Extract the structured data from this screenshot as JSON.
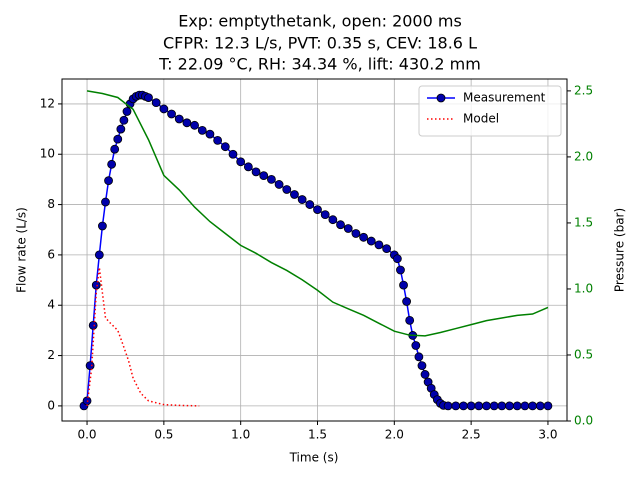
{
  "chart_data": {
    "type": "line",
    "title": [
      "Exp: emptythetank, open: 2000 ms",
      "CFPR: 12.3 L/s, PVT: 0.35 s, CEV: 18.6 L",
      "T: 22.09 °C, RH: 34.34 %, lift: 430.2 mm"
    ],
    "x_label": "Time (s)",
    "y_label": "Flow rate (L/s)",
    "y2_label": "Pressure (bar)",
    "xlim": [
      -0.163,
      3.124
    ],
    "ylim": [
      -0.6,
      12.99
    ],
    "y2lim": [
      0,
      2.59
    ],
    "xticks": [
      {
        "value": 0,
        "label": "0.0"
      },
      0.5,
      {
        "value": 1,
        "label": "1.0"
      },
      1.5,
      {
        "value": 2,
        "label": "2.0"
      },
      2.5,
      {
        "value": 3,
        "label": "3.0"
      }
    ],
    "yticks": [
      0,
      2,
      4,
      6,
      8,
      10,
      12
    ],
    "y2ticks": [
      {
        "value": 0,
        "label": "0.0"
      },
      0.5,
      {
        "value": 1,
        "label": "1.0"
      },
      1.5,
      {
        "value": 2,
        "label": "2.0"
      },
      2.5
    ],
    "y2_color": "#008000",
    "grid": true,
    "legend": "upper right",
    "series": [
      {
        "name": "Measurement",
        "color": "#0000ff",
        "marker": "circle",
        "marker_fill": "#0000aa",
        "x": [
          -0.02,
          0.0,
          0.02,
          0.04,
          0.06,
          0.08,
          0.1,
          0.12,
          0.14,
          0.16,
          0.18,
          0.2,
          0.22,
          0.24,
          0.26,
          0.28,
          0.3,
          0.32,
          0.34,
          0.36,
          0.38,
          0.4,
          0.45,
          0.5,
          0.55,
          0.6,
          0.65,
          0.7,
          0.75,
          0.8,
          0.85,
          0.9,
          0.95,
          1.0,
          1.05,
          1.1,
          1.15,
          1.2,
          1.25,
          1.3,
          1.35,
          1.4,
          1.45,
          1.5,
          1.55,
          1.6,
          1.65,
          1.7,
          1.75,
          1.8,
          1.85,
          1.9,
          1.95,
          2.0,
          2.02,
          2.04,
          2.06,
          2.08,
          2.1,
          2.12,
          2.14,
          2.16,
          2.18,
          2.2,
          2.22,
          2.24,
          2.26,
          2.28,
          2.3,
          2.32,
          2.35,
          2.4,
          2.45,
          2.5,
          2.55,
          2.6,
          2.65,
          2.7,
          2.75,
          2.8,
          2.85,
          2.9,
          2.95,
          3.0
        ],
        "values": [
          0,
          0.2,
          1.6,
          3.2,
          4.8,
          6.0,
          7.15,
          8.1,
          8.95,
          9.6,
          10.2,
          10.6,
          11.0,
          11.35,
          11.7,
          12.0,
          12.2,
          12.3,
          12.35,
          12.35,
          12.3,
          12.25,
          12.05,
          11.8,
          11.6,
          11.4,
          11.25,
          11.15,
          10.95,
          10.8,
          10.55,
          10.3,
          10.0,
          9.7,
          9.5,
          9.3,
          9.15,
          9.0,
          8.8,
          8.6,
          8.4,
          8.2,
          8.0,
          7.8,
          7.6,
          7.4,
          7.2,
          7.05,
          6.85,
          6.7,
          6.55,
          6.4,
          6.25,
          6.0,
          5.85,
          5.4,
          4.8,
          4.15,
          3.4,
          2.8,
          2.4,
          1.95,
          1.6,
          1.25,
          0.95,
          0.7,
          0.45,
          0.25,
          0.1,
          0.02,
          0,
          0,
          0,
          0,
          0,
          0,
          0,
          0,
          0,
          0,
          0,
          0,
          0,
          0
        ]
      },
      {
        "name": "Model",
        "color": "#ff0000",
        "dash": "dotted",
        "x": [
          0,
          0.03,
          0.06,
          0.08,
          0.1,
          0.12,
          0.15,
          0.2,
          0.23,
          0.27,
          0.3,
          0.35,
          0.4,
          0.5,
          0.6,
          0.73
        ],
        "values": [
          0,
          1.5,
          4.5,
          5.5,
          4.5,
          3.5,
          3.3,
          3.0,
          2.5,
          1.8,
          1.1,
          0.5,
          0.2,
          0.05,
          0.02,
          0
        ]
      },
      {
        "color": "#008000",
        "axis": "y2",
        "x": [
          0,
          0.1,
          0.2,
          0.3,
          0.4,
          0.5,
          0.6,
          0.7,
          0.8,
          0.9,
          1.0,
          1.1,
          1.2,
          1.3,
          1.4,
          1.5,
          1.6,
          1.7,
          1.8,
          1.9,
          2.0,
          2.1,
          2.2,
          2.3,
          2.4,
          2.5,
          2.6,
          2.7,
          2.8,
          2.9,
          3.0
        ],
        "values": [
          2.5,
          2.48,
          2.45,
          2.36,
          2.13,
          1.86,
          1.75,
          1.62,
          1.51,
          1.42,
          1.33,
          1.27,
          1.2,
          1.14,
          1.07,
          0.99,
          0.9,
          0.85,
          0.8,
          0.74,
          0.68,
          0.65,
          0.645,
          0.67,
          0.7,
          0.73,
          0.76,
          0.78,
          0.8,
          0.81,
          0.86
        ]
      }
    ]
  }
}
